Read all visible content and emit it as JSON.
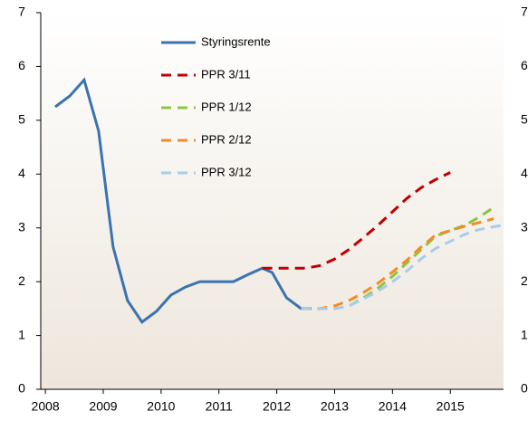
{
  "chart_data": {
    "type": "line",
    "xlim": [
      2007.92,
      2015.92
    ],
    "xticks": [
      2008,
      2009,
      2010,
      2011,
      2012,
      2013,
      2014,
      2015
    ],
    "ylim": [
      0,
      7
    ],
    "yticks": [
      0,
      1,
      2,
      3,
      4,
      5,
      6,
      7
    ],
    "y2lim": [
      0,
      7
    ],
    "y2ticks": [
      0,
      1,
      2,
      3,
      4,
      5,
      6,
      7
    ],
    "legend": "upper left",
    "series": [
      {
        "name": "Styringsrente",
        "color": "#3a73b0",
        "dashed": false,
        "x": [
          2008.17,
          2008.42,
          2008.67,
          2008.92,
          2009.17,
          2009.42,
          2009.67,
          2009.92,
          2010.17,
          2010.42,
          2010.67,
          2011.0,
          2011.25,
          2011.5,
          2011.75,
          2011.92,
          2012.17,
          2012.42,
          2012.6
        ],
        "values": [
          5.25,
          5.45,
          5.75,
          4.8,
          2.65,
          1.65,
          1.25,
          1.45,
          1.75,
          1.9,
          2.0,
          2.0,
          2.0,
          2.13,
          2.25,
          2.17,
          1.7,
          1.5,
          1.5
        ]
      },
      {
        "name": "PPR 3/11",
        "color": "#c00000",
        "dashed": true,
        "x": [
          2011.75,
          2012.0,
          2012.5,
          2012.75,
          2013.0,
          2013.25,
          2013.5,
          2013.75,
          2014.0,
          2014.25,
          2014.5,
          2014.75,
          2015.0
        ],
        "values": [
          2.25,
          2.25,
          2.25,
          2.3,
          2.42,
          2.6,
          2.82,
          3.05,
          3.3,
          3.55,
          3.75,
          3.9,
          4.03
        ]
      },
      {
        "name": "PPR 1/12",
        "color": "#8cc63f",
        "dashed": true,
        "x": [
          2012.42,
          2013.0,
          2013.25,
          2013.5,
          2013.75,
          2014.0,
          2014.25,
          2014.5,
          2014.75,
          2015.0,
          2015.25,
          2015.5,
          2015.75
        ],
        "values": [
          1.5,
          1.5,
          1.55,
          1.7,
          1.88,
          2.1,
          2.35,
          2.6,
          2.85,
          2.95,
          3.05,
          3.2,
          3.38
        ]
      },
      {
        "name": "PPR 2/12",
        "color": "#f28c28",
        "dashed": true,
        "x": [
          2012.42,
          2012.75,
          2013.0,
          2013.25,
          2013.5,
          2013.75,
          2014.0,
          2014.25,
          2014.5,
          2014.75,
          2015.0,
          2015.25,
          2015.5,
          2015.75
        ],
        "values": [
          1.5,
          1.5,
          1.55,
          1.65,
          1.8,
          1.97,
          2.18,
          2.4,
          2.65,
          2.87,
          2.95,
          3.03,
          3.1,
          3.17
        ]
      },
      {
        "name": "PPR 3/12",
        "color": "#a8ccee",
        "dashed": true,
        "x": [
          2012.42,
          2013.0,
          2013.25,
          2013.5,
          2013.75,
          2014.0,
          2014.25,
          2014.5,
          2014.75,
          2015.0,
          2015.25,
          2015.5,
          2015.75,
          2015.92
        ],
        "values": [
          1.5,
          1.5,
          1.55,
          1.68,
          1.82,
          2.0,
          2.2,
          2.43,
          2.62,
          2.75,
          2.88,
          2.97,
          3.02,
          3.05
        ]
      }
    ]
  }
}
